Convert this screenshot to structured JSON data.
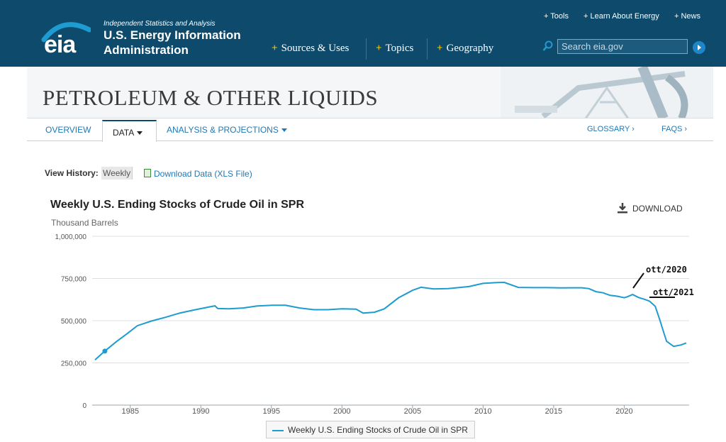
{
  "header": {
    "logo": "eia",
    "tagline": "Independent Statistics and Analysis",
    "org_line1": "U.S. Energy Information",
    "org_line2": "Administration",
    "nav": [
      "Sources & Uses",
      "Topics",
      "Geography"
    ],
    "toplinks": [
      "+ Tools",
      "+ Learn About Energy",
      "+ News"
    ],
    "search_placeholder": "Search eia.gov"
  },
  "banner": {
    "title": "PETROLEUM & OTHER LIQUIDS"
  },
  "tabs": {
    "overview": "OVERVIEW",
    "data": "DATA",
    "analysis": "ANALYSIS & PROJECTIONS",
    "glossary": "GLOSSARY ›",
    "faqs": "FAQS ›"
  },
  "view_history": {
    "label": "View History:",
    "selected": "Weekly",
    "download_link": "Download Data (XLS File)"
  },
  "download_button": "DOWNLOAD",
  "colors": {
    "header": "#0d4a6b",
    "series": "#1e9bd0",
    "accent": "#f5c400"
  },
  "chart_data": {
    "type": "line",
    "title": "Weekly U.S. Ending Stocks of Crude Oil in SPR",
    "ylabel": "Thousand Barrels",
    "ylim": [
      0,
      1000000
    ],
    "yticks": [
      "0",
      "250,000",
      "500,000",
      "750,000",
      "1,000,000"
    ],
    "xticks": [
      "1985",
      "1990",
      "1995",
      "2000",
      "2005",
      "2010",
      "2015",
      "2020"
    ],
    "xlim": [
      1982.3,
      2024.6
    ],
    "grid": true,
    "legend": "bottom",
    "series": [
      {
        "name": "Weekly U.S. Ending Stocks of Crude Oil in SPR",
        "x": [
          1982.5,
          1983.2,
          1984.0,
          1984.8,
          1985.5,
          1986.5,
          1987.5,
          1988.5,
          1989.5,
          1990.5,
          1991.0,
          1991.2,
          1992.0,
          1993.0,
          1994.0,
          1995.0,
          1996.0,
          1997.0,
          1998.0,
          1999.0,
          2000.0,
          2001.0,
          2001.5,
          2002.3,
          2003.0,
          2004.0,
          2005.0,
          2005.6,
          2006.5,
          2007.5,
          2008.5,
          2009.0,
          2010.0,
          2011.0,
          2011.5,
          2012.5,
          2013.5,
          2014.5,
          2015.5,
          2016.5,
          2017.0,
          2017.5,
          2018.0,
          2018.5,
          2019.0,
          2019.5,
          2020.0,
          2020.2,
          2020.6,
          2021.0,
          2021.5,
          2021.8,
          2022.2,
          2022.5,
          2022.8,
          2023.0,
          2023.5,
          2024.0,
          2024.4
        ],
        "y": [
          268000,
          320000,
          375000,
          425000,
          470000,
          498000,
          520000,
          545000,
          563000,
          580000,
          588000,
          572000,
          570000,
          575000,
          587000,
          591000,
          591000,
          575000,
          565000,
          565000,
          570000,
          568000,
          545000,
          550000,
          570000,
          635000,
          680000,
          698000,
          688000,
          690000,
          698000,
          702000,
          721000,
          726000,
          727000,
          697000,
          696000,
          696000,
          694000,
          695000,
          695000,
          690000,
          672000,
          665000,
          650000,
          645000,
          636000,
          641000,
          655000,
          638000,
          625000,
          615000,
          585000,
          510000,
          430000,
          378000,
          348000,
          356000,
          368000
        ]
      }
    ],
    "annotations": [
      "ott/2020",
      "ott/2021"
    ]
  }
}
